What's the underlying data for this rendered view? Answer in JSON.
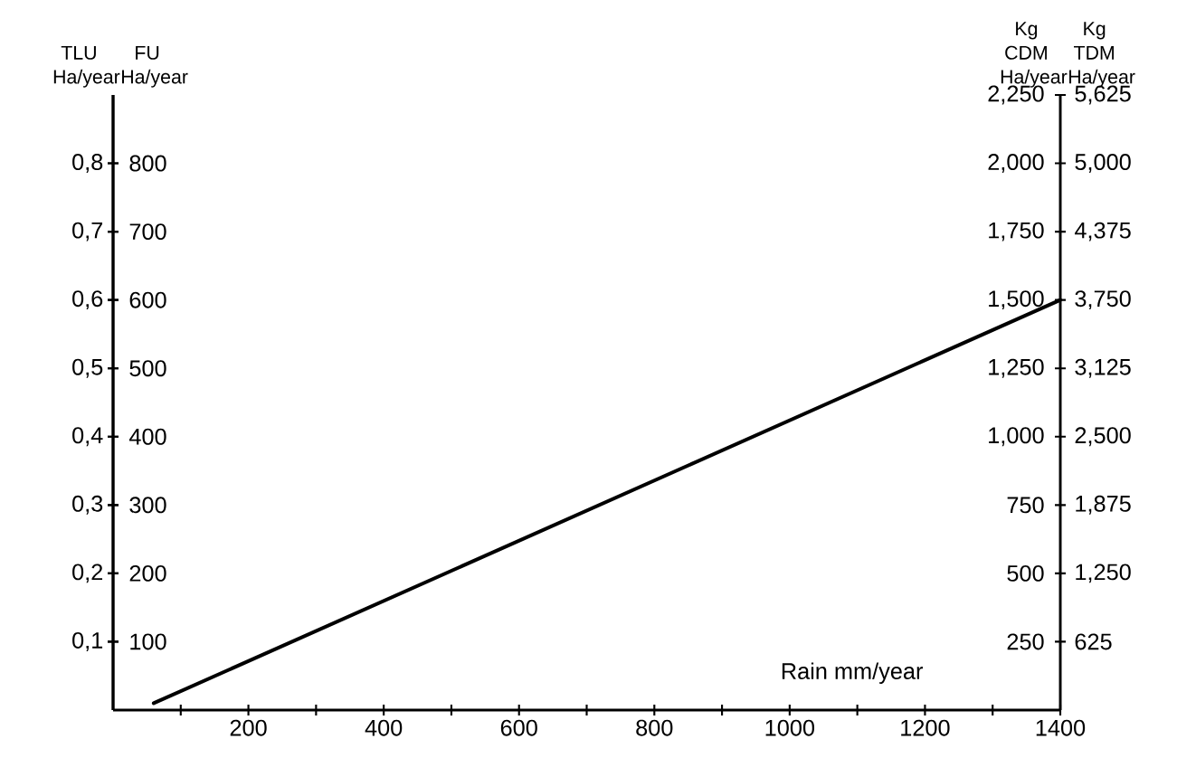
{
  "chart_data": {
    "type": "line",
    "xlabel": "Rain mm/year",
    "ylabel": "TLU Ha/year",
    "y2label": "FU Ha/year",
    "y3label": "Kg CDM Ha/year",
    "annotations": [
      "Kg TDM Ha/year",
      "625",
      "1,250",
      "1,875",
      "2,500",
      "3,125",
      "3,750",
      "4,375",
      "5,000",
      "5,625"
    ],
    "xlim": [
      0,
      1400
    ],
    "xticks": [
      {
        "value": 100,
        "label": null
      },
      200,
      {
        "value": 300,
        "label": null
      },
      400,
      {
        "value": 500,
        "label": null
      },
      600,
      {
        "value": 700,
        "label": null
      },
      800,
      {
        "value": 900,
        "label": null
      },
      1000,
      {
        "value": 1100,
        "label": null
      },
      1200,
      {
        "value": 1300,
        "label": null
      },
      1400
    ],
    "ylim": [
      0,
      0.9
    ],
    "yticks": [
      {
        "value": 0.1,
        "label": "0,1"
      },
      {
        "value": 0.2,
        "label": "0,2"
      },
      {
        "value": 0.3,
        "label": "0,3"
      },
      {
        "value": 0.4,
        "label": "0,4"
      },
      {
        "value": 0.5,
        "label": "0,5"
      },
      {
        "value": 0.6,
        "label": "0,6"
      },
      {
        "value": 0.7,
        "label": "0,7"
      },
      {
        "value": 0.8,
        "label": "0,8"
      }
    ],
    "y2lim": [
      0,
      900
    ],
    "y2ticks": [
      100,
      200,
      300,
      400,
      500,
      600,
      700,
      800
    ],
    "y3lim": [
      0,
      2250
    ],
    "y3ticks": [
      250,
      500,
      750,
      {
        "value": 1000,
        "label": "1,000"
      },
      {
        "value": 1250,
        "label": "1,250"
      },
      {
        "value": 1500,
        "label": "1,500"
      },
      {
        "value": 1750,
        "label": "1,750"
      },
      {
        "value": 2000,
        "label": "2,000"
      },
      {
        "value": 2250,
        "label": "2,250"
      }
    ],
    "series": [
      {
        "x": [
          60,
          1400
        ],
        "values": [
          10,
          600
        ],
        "axis": "y2",
        "color": "#000000"
      }
    ],
    "line_style": "solid",
    "marker": "none",
    "grid": false
  }
}
